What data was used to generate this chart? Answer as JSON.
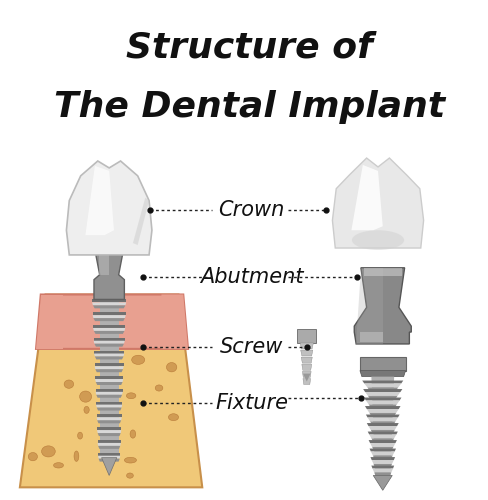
{
  "title_line1": "Structure of",
  "title_line2": "The Dental Implant",
  "labels": [
    "Crown",
    "Abutment",
    "Screw",
    "Fixture"
  ],
  "bg_color": "#ffffff",
  "title_color": "#111111",
  "label_color": "#111111",
  "gum_outer_color": "#E8A090",
  "gum_inner_color": "#F2B8A8",
  "bone_color": "#F0C878",
  "bone_spot_color": "#C8904A",
  "crown_white": "#f5f5f5",
  "crown_highlight": "#ffffff",
  "crown_shadow": "#d0d0d0",
  "metal_dark": "#707070",
  "metal_mid": "#aaaaaa",
  "metal_light": "#d0d0d0",
  "metal_shiny": "#e8e8e8",
  "ab_dark": "#666666",
  "ab_mid": "#888888",
  "ab_light": "#bbbbbb",
  "dotted_color": "#222222",
  "title_fontsize": 26,
  "label_fontsize": 15
}
